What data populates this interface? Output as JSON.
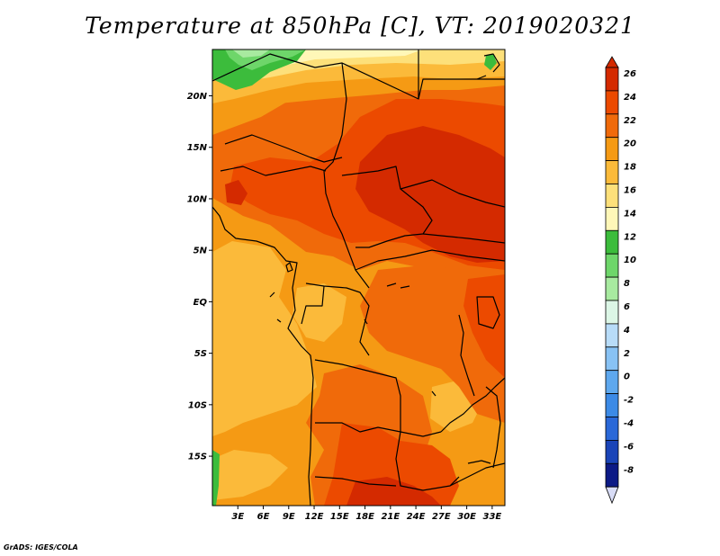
{
  "title": "Temperature at 850hPa [C], VT: 2019020321",
  "credit": "GrADS: IGES/COLA",
  "map": {
    "lat_labels": [
      {
        "label": "20N",
        "lat": 20
      },
      {
        "label": "15N",
        "lat": 15
      },
      {
        "label": "10N",
        "lat": 10
      },
      {
        "label": "5N",
        "lat": 5
      },
      {
        "label": "EQ",
        "lat": 0
      },
      {
        "label": "5S",
        "lat": -5
      },
      {
        "label": "10S",
        "lat": -10
      },
      {
        "label": "15S",
        "lat": -15
      }
    ],
    "lon_labels": [
      {
        "label": "3E",
        "lon": 3
      },
      {
        "label": "6E",
        "lon": 6
      },
      {
        "label": "9E",
        "lon": 9
      },
      {
        "label": "12E",
        "lon": 12
      },
      {
        "label": "15E",
        "lon": 15
      },
      {
        "label": "18E",
        "lon": 18
      },
      {
        "label": "21E",
        "lon": 21
      },
      {
        "label": "24E",
        "lon": 24
      },
      {
        "label": "27E",
        "lon": 27
      },
      {
        "label": "30E",
        "lon": 30
      },
      {
        "label": "33E",
        "lon": 33
      }
    ],
    "lon_range": [
      0,
      34.5
    ],
    "lat_range": [
      -19.8,
      24.5
    ]
  },
  "colorbar": {
    "levels": [
      "26",
      "24",
      "22",
      "20",
      "18",
      "16",
      "14",
      "12",
      "10",
      "8",
      "6",
      "4",
      "2",
      "0",
      "-2",
      "-4",
      "-6",
      "-8"
    ],
    "colors": [
      "#d42a00",
      "#ec4a00",
      "#f06a0a",
      "#f59a14",
      "#fbba3a",
      "#fde07a",
      "#fff7b8",
      "#3cbc3c",
      "#6ed66a",
      "#a8eaa0",
      "#dcf6e6",
      "#b8dcf8",
      "#88c2f4",
      "#5ea8ee",
      "#3c8ae6",
      "#2a68d8",
      "#1a44b8",
      "#0c1a86",
      "#d8dcf6"
    ]
  }
}
